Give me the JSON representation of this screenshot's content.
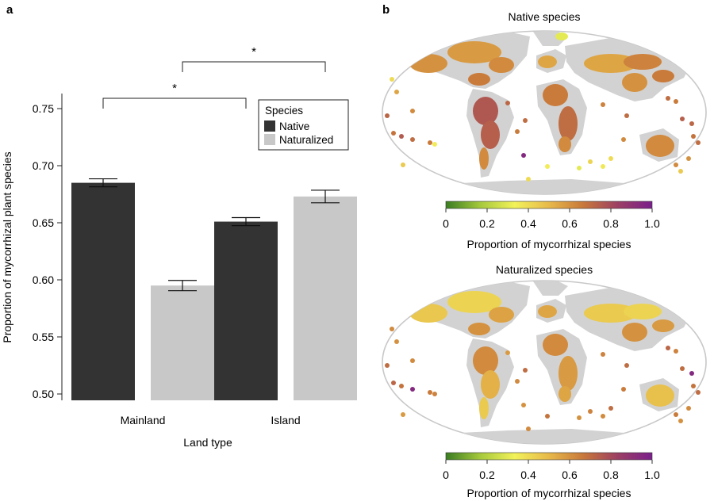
{
  "panels": {
    "a": {
      "label": "a"
    },
    "b": {
      "label": "b"
    }
  },
  "chart_data": [
    {
      "type": "bar",
      "panel": "a",
      "categories": [
        "Mainland",
        "Island"
      ],
      "series": [
        {
          "name": "Native",
          "color": "#333333",
          "values": [
            0.685,
            0.651
          ],
          "err": [
            0.0035,
            0.0035
          ]
        },
        {
          "name": "Naturalized",
          "color": "#c8c8c8",
          "values": [
            0.595,
            0.673
          ],
          "err": [
            0.0045,
            0.0055
          ]
        }
      ],
      "xlabel": "Land type",
      "ylabel": "Proportion of mycorrhizal plant species",
      "ylim": [
        0.5,
        0.76
      ],
      "yticks": [
        "0.50",
        "0.55",
        "0.60",
        "0.65",
        "0.70",
        "0.75"
      ],
      "grid": false,
      "legend": {
        "title": "Species",
        "placement": "top-right"
      },
      "annotations": [
        {
          "text": "*",
          "from": "Mainland Native",
          "to": "Island Native"
        },
        {
          "text": "*",
          "from": "Mainland Naturalized",
          "to": "Island Naturalized"
        }
      ]
    },
    {
      "type": "heatmap",
      "panel": "b",
      "maps": [
        {
          "title": "Native species"
        },
        {
          "title": "Naturalized species"
        }
      ],
      "colorbar": {
        "label": "Proportion of mycorrhizal species",
        "ticks": [
          "0",
          "0.2",
          "0.4",
          "0.6",
          "0.8",
          "1.0"
        ],
        "range": [
          0,
          1
        ],
        "colors": [
          "#3a7d22",
          "#a6c93c",
          "#f2f25a",
          "#e7b94a",
          "#c8783a",
          "#9c3f63",
          "#7a1f8c"
        ]
      }
    }
  ]
}
